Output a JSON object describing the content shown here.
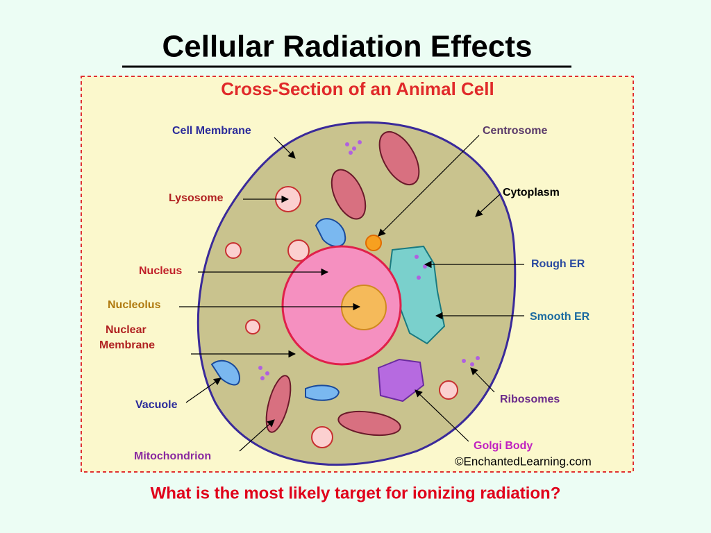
{
  "slide": {
    "title": "Cellular Radiation Effects",
    "question": "What is the most likely target for ionizing radiation?"
  },
  "diagram": {
    "title": "Cross-Section of an Animal Cell",
    "credit": "©EnchantedLearning.com",
    "labels": {
      "cell_membrane": "Cell Membrane",
      "lysosome": "Lysosome",
      "nucleus": "Nucleus",
      "nucleolus": "Nucleolus",
      "nuclear_membrane": [
        "Nuclear",
        "Membrane"
      ],
      "vacuole": "Vacuole",
      "mitochondrion": "Mitochondrion",
      "centrosome": "Centrosome",
      "cytoplasm": "Cytoplasm",
      "rough_er": "Rough ER",
      "smooth_er": "Smooth ER",
      "ribosomes": "Ribosomes",
      "golgi_body": "Golgi Body"
    }
  }
}
